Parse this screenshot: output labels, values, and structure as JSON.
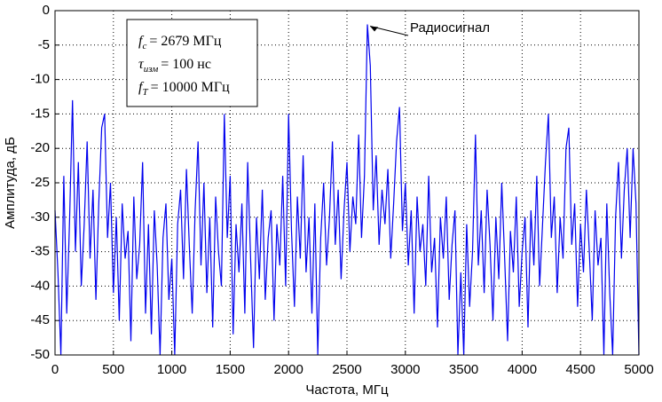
{
  "chart_data": {
    "type": "line",
    "xlabel": "Частота, МГц",
    "ylabel": "Амплитуда, дБ",
    "annotation": "Радиосигнал",
    "legend_box": [
      {
        "symbol": "f",
        "sub": "c",
        "rest": "= 2679 МГц"
      },
      {
        "symbol": "τ",
        "sub": "изм",
        "rest": "= 100 нс"
      },
      {
        "symbol": "f",
        "sub": "T",
        "rest": "= 10000 МГц"
      }
    ],
    "xlim": [
      0,
      5000
    ],
    "xticks": [
      0,
      500,
      1000,
      1500,
      2000,
      2500,
      3000,
      3500,
      4000,
      4500,
      5000
    ],
    "ylim": [
      -50,
      0
    ],
    "yticks": [
      0,
      -5,
      -10,
      -15,
      -20,
      -25,
      -30,
      -35,
      -40,
      -45,
      -50
    ],
    "grid": true,
    "series": [
      {
        "color": "#0000ee",
        "x": [
          0,
          25,
          50,
          75,
          100,
          125,
          150,
          175,
          200,
          225,
          250,
          275,
          300,
          325,
          350,
          375,
          400,
          425,
          450,
          475,
          500,
          525,
          550,
          575,
          600,
          625,
          650,
          675,
          700,
          725,
          750,
          775,
          800,
          825,
          850,
          875,
          900,
          925,
          950,
          975,
          1000,
          1025,
          1050,
          1075,
          1100,
          1125,
          1150,
          1175,
          1200,
          1225,
          1250,
          1275,
          1300,
          1325,
          1350,
          1375,
          1400,
          1425,
          1450,
          1475,
          1500,
          1525,
          1550,
          1575,
          1600,
          1625,
          1650,
          1675,
          1700,
          1725,
          1750,
          1775,
          1800,
          1825,
          1850,
          1875,
          1900,
          1925,
          1950,
          1975,
          2000,
          2025,
          2050,
          2075,
          2100,
          2125,
          2150,
          2175,
          2200,
          2225,
          2250,
          2275,
          2300,
          2325,
          2350,
          2375,
          2400,
          2425,
          2450,
          2475,
          2500,
          2525,
          2550,
          2575,
          2600,
          2625,
          2650,
          2675,
          2700,
          2725,
          2750,
          2775,
          2800,
          2825,
          2850,
          2875,
          2900,
          2925,
          2950,
          2975,
          3000,
          3025,
          3050,
          3075,
          3100,
          3125,
          3150,
          3175,
          3200,
          3225,
          3250,
          3275,
          3300,
          3325,
          3350,
          3375,
          3400,
          3425,
          3450,
          3475,
          3500,
          3525,
          3550,
          3575,
          3600,
          3625,
          3650,
          3675,
          3700,
          3725,
          3750,
          3775,
          3800,
          3825,
          3850,
          3875,
          3900,
          3925,
          3950,
          3975,
          4000,
          4025,
          4050,
          4075,
          4100,
          4125,
          4150,
          4175,
          4200,
          4225,
          4250,
          4275,
          4300,
          4325,
          4350,
          4375,
          4400,
          4425,
          4450,
          4475,
          4500,
          4525,
          4550,
          4575,
          4600,
          4625,
          4650,
          4675,
          4700,
          4725,
          4750,
          4775,
          4800,
          4825,
          4850,
          4875,
          4900,
          4925,
          4950,
          4975,
          5000
        ],
        "values": [
          -29,
          -38,
          -50,
          -24,
          -44,
          -30,
          -13,
          -35,
          -22,
          -40,
          -31,
          -19,
          -36,
          -26,
          -42,
          -28,
          -17,
          -15,
          -33,
          -25,
          -41,
          -30,
          -45,
          -28,
          -36,
          -32,
          -48,
          -27,
          -39,
          -34,
          -22,
          -44,
          -31,
          -47,
          -29,
          -37,
          -50,
          -33,
          -28,
          -42,
          -36,
          -50,
          -31,
          -26,
          -39,
          -23,
          -34,
          -44,
          -29,
          -19,
          -37,
          -25,
          -41,
          -30,
          -46,
          -27,
          -35,
          -40,
          -15,
          -33,
          -24,
          -47,
          -31,
          -38,
          -28,
          -44,
          -22,
          -36,
          -49,
          -30,
          -39,
          -26,
          -42,
          -33,
          -29,
          -45,
          -31,
          -37,
          -24,
          -40,
          -15,
          -32,
          -43,
          -27,
          -36,
          -21,
          -38,
          -30,
          -44,
          -28,
          -50,
          -33,
          -25,
          -37,
          -30,
          -19,
          -34,
          -26,
          -39,
          -29,
          -22,
          -35,
          -27,
          -31,
          -18,
          -33,
          -24,
          -2,
          -8,
          -29,
          -21,
          -34,
          -26,
          -31,
          -23,
          -36,
          -28,
          -19,
          -14,
          -32,
          -25,
          -37,
          -29,
          -44,
          -27,
          -35,
          -31,
          -40,
          -24,
          -38,
          -33,
          -46,
          -30,
          -36,
          -27,
          -42,
          -34,
          -29,
          -50,
          -38,
          -50,
          -31,
          -43,
          -35,
          -18,
          -37,
          -29,
          -41,
          -26,
          -34,
          -45,
          -30,
          -39,
          -25,
          -36,
          -48,
          -32,
          -38,
          -27,
          -43,
          -35,
          -30,
          -46,
          -29,
          -37,
          -24,
          -40,
          -31,
          -22,
          -15,
          -33,
          -27,
          -41,
          -30,
          -36,
          -20,
          -17,
          -34,
          -28,
          -43,
          -31,
          -38,
          -26,
          -35,
          -45,
          -29,
          -37,
          -33,
          -50,
          -28,
          -41,
          -50,
          -30,
          -22,
          -36,
          -26,
          -20,
          -33,
          -20,
          -28,
          -50
        ]
      }
    ]
  }
}
